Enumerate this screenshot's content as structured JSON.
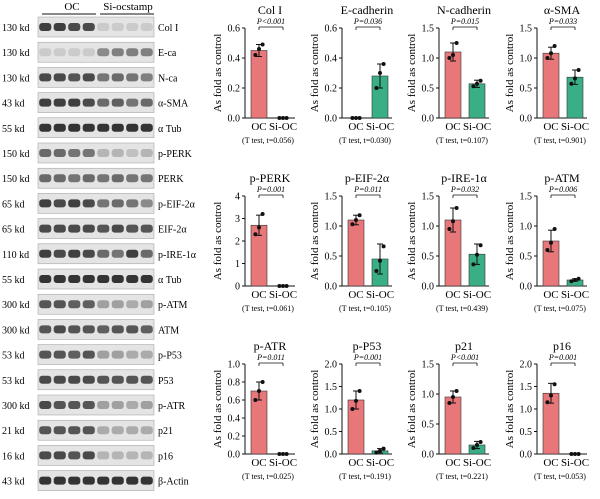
{
  "blot": {
    "groups": [
      "OC",
      "Si-ocstamp"
    ],
    "rows": [
      {
        "kd": "130 kd",
        "label": "Col I",
        "intensity": [
          0.8,
          0.8,
          0.75,
          0.75,
          0.15,
          0.15,
          0.15,
          0.15
        ]
      },
      {
        "kd": "130 kd",
        "label": "E-ca",
        "intensity": [
          0.15,
          0.15,
          0.15,
          0.15,
          0.45,
          0.5,
          0.5,
          0.5
        ]
      },
      {
        "kd": "130 kd",
        "label": "N-ca",
        "intensity": [
          0.75,
          0.75,
          0.7,
          0.75,
          0.55,
          0.6,
          0.55,
          0.5
        ]
      },
      {
        "kd": "43 kd",
        "label": "α-SMA",
        "intensity": [
          0.8,
          0.8,
          0.8,
          0.75,
          0.6,
          0.65,
          0.55,
          0.6
        ]
      },
      {
        "kd": "55 kd",
        "label": "α Tub",
        "intensity": [
          0.85,
          0.85,
          0.85,
          0.85,
          0.85,
          0.85,
          0.85,
          0.85
        ]
      },
      {
        "kd": "150 kd",
        "label": "p-PERK",
        "intensity": [
          0.6,
          0.6,
          0.55,
          0.55,
          0.25,
          0.25,
          0.2,
          0.25
        ]
      },
      {
        "kd": "150 kd",
        "label": "PERK",
        "intensity": [
          0.6,
          0.6,
          0.55,
          0.6,
          0.55,
          0.6,
          0.55,
          0.55
        ]
      },
      {
        "kd": "65 kd",
        "label": "p-EIF-2α",
        "intensity": [
          0.8,
          0.75,
          0.8,
          0.75,
          0.55,
          0.6,
          0.55,
          0.45
        ]
      },
      {
        "kd": "65 kd",
        "label": "EIF-2α",
        "intensity": [
          0.75,
          0.75,
          0.75,
          0.75,
          0.7,
          0.75,
          0.7,
          0.7
        ]
      },
      {
        "kd": "110 kd",
        "label": "p-IRE-1α",
        "intensity": [
          0.8,
          0.75,
          0.8,
          0.75,
          0.6,
          0.55,
          0.8,
          0.6
        ]
      },
      {
        "kd": "55 kd",
        "label": "α Tub",
        "intensity": [
          0.85,
          0.85,
          0.85,
          0.85,
          0.85,
          0.85,
          0.85,
          0.85
        ]
      },
      {
        "kd": "300 kd",
        "label": "p-ATM",
        "intensity": [
          0.7,
          0.7,
          0.65,
          0.65,
          0.35,
          0.35,
          0.3,
          0.35
        ]
      },
      {
        "kd": "300 kd",
        "label": "ATM",
        "intensity": [
          0.7,
          0.75,
          0.7,
          0.7,
          0.65,
          0.7,
          0.7,
          0.65
        ]
      },
      {
        "kd": "53 kd",
        "label": "p-P53",
        "intensity": [
          0.7,
          0.7,
          0.65,
          0.7,
          0.35,
          0.35,
          0.3,
          0.3
        ]
      },
      {
        "kd": "53 kd",
        "label": "P53",
        "intensity": [
          0.75,
          0.75,
          0.75,
          0.75,
          0.7,
          0.7,
          0.7,
          0.7
        ]
      },
      {
        "kd": "300 kd",
        "label": "p-ATR",
        "intensity": [
          0.75,
          0.7,
          0.7,
          0.7,
          0.35,
          0.35,
          0.3,
          0.35
        ]
      },
      {
        "kd": "21 kd",
        "label": "p21",
        "intensity": [
          0.7,
          0.7,
          0.7,
          0.7,
          0.3,
          0.3,
          0.3,
          0.3
        ]
      },
      {
        "kd": "16 kd",
        "label": "p16",
        "intensity": [
          0.75,
          0.75,
          0.7,
          0.75,
          0.25,
          0.25,
          0.25,
          0.25
        ]
      },
      {
        "kd": "43 kd",
        "label": "β-Actin",
        "intensity": [
          0.85,
          0.85,
          0.85,
          0.85,
          0.85,
          0.85,
          0.85,
          0.85
        ]
      }
    ]
  },
  "colors": {
    "oc": "#e8777a",
    "sioc": "#3aaf85",
    "dot": "#111111"
  },
  "ylabel": "As fold as control",
  "chart_data": [
    {
      "type": "bar",
      "title": "Col I",
      "categories": [
        "OC",
        "Si-OC"
      ],
      "values": [
        0.45,
        0.0
      ],
      "errors": [
        0.04,
        0.0
      ],
      "points": [
        [
          0.42,
          0.46,
          0.49
        ],
        [
          0.0,
          0.0,
          0.0
        ]
      ],
      "ylim": [
        0,
        0.6
      ],
      "yticks": [
        "0.0",
        "0.2",
        "0.4",
        "0.6"
      ],
      "pval": "P<0.001",
      "note": "(T test, t=0.056)"
    },
    {
      "type": "bar",
      "title": "E-cadherin",
      "categories": [
        "OC",
        "Si-OC"
      ],
      "values": [
        0.0,
        0.28
      ],
      "errors": [
        0.0,
        0.08
      ],
      "points": [
        [
          0.0,
          0.0,
          0.0
        ],
        [
          0.2,
          0.3,
          0.36
        ]
      ],
      "ylim": [
        0,
        0.6
      ],
      "yticks": [
        "0.0",
        "0.2",
        "0.4",
        "0.6"
      ],
      "pval": "P=0.036",
      "note": "(T test, t=0.030)"
    },
    {
      "type": "bar",
      "title": "N-cadherin",
      "categories": [
        "OC",
        "Si-OC"
      ],
      "values": [
        1.1,
        0.57
      ],
      "errors": [
        0.15,
        0.06
      ],
      "points": [
        [
          1.0,
          1.05,
          1.25
        ],
        [
          0.53,
          0.57,
          0.62
        ]
      ],
      "ylim": [
        0,
        1.5
      ],
      "yticks": [
        "0.0",
        "0.5",
        "1.0",
        "1.5"
      ],
      "pval": "P=0.015",
      "note": "(T test, t=0.107)"
    },
    {
      "type": "bar",
      "title": "α-SMA",
      "categories": [
        "OC",
        "Si-OC"
      ],
      "values": [
        1.08,
        0.68
      ],
      "errors": [
        0.1,
        0.12
      ],
      "points": [
        [
          1.0,
          1.08,
          1.2
        ],
        [
          0.57,
          0.66,
          0.8
        ]
      ],
      "ylim": [
        0,
        1.5
      ],
      "yticks": [
        "0.0",
        "0.5",
        "1.0",
        "1.5"
      ],
      "pval": "P=0.033",
      "note": "(T test, t=0.901)"
    },
    {
      "type": "bar",
      "title": "p-PERK",
      "categories": [
        "OC",
        "Si-OC"
      ],
      "values": [
        2.7,
        0.0
      ],
      "errors": [
        0.45,
        0.0
      ],
      "points": [
        [
          2.3,
          2.6,
          3.2
        ],
        [
          0.0,
          0.0,
          0.0
        ]
      ],
      "ylim": [
        0,
        4
      ],
      "yticks": [
        "0",
        "1",
        "2",
        "3",
        "4"
      ],
      "pval": "P=0.001",
      "note": "(T test, t=0.061)"
    },
    {
      "type": "bar",
      "title": "p-EIF-2α",
      "categories": [
        "OC",
        "Si-OC"
      ],
      "values": [
        1.1,
        0.45
      ],
      "errors": [
        0.08,
        0.25
      ],
      "points": [
        [
          1.03,
          1.1,
          1.18
        ],
        [
          0.25,
          0.42,
          0.66
        ]
      ],
      "ylim": [
        0,
        1.5
      ],
      "yticks": [
        "0.0",
        "0.5",
        "1.0",
        "1.5"
      ],
      "pval": "P=0.011",
      "note": "(T test, t=0.105)"
    },
    {
      "type": "bar",
      "title": "p-IRE-1α",
      "categories": [
        "OC",
        "Si-OC"
      ],
      "values": [
        1.1,
        0.53
      ],
      "errors": [
        0.2,
        0.17
      ],
      "points": [
        [
          0.95,
          1.08,
          1.3
        ],
        [
          0.36,
          0.52,
          0.68
        ]
      ],
      "ylim": [
        0,
        1.5
      ],
      "yticks": [
        "0.0",
        "0.5",
        "1.0",
        "1.5"
      ],
      "pval": "P=0.032",
      "note": "(T test, t=0.439)"
    },
    {
      "type": "bar",
      "title": "p-ATM",
      "categories": [
        "OC",
        "Si-OC"
      ],
      "values": [
        0.75,
        0.1
      ],
      "errors": [
        0.18,
        0.02
      ],
      "points": [
        [
          0.6,
          0.72,
          0.95
        ],
        [
          0.08,
          0.1,
          0.12
        ]
      ],
      "ylim": [
        0,
        1.5
      ],
      "yticks": [
        "0.0",
        "0.5",
        "1.0",
        "1.5"
      ],
      "pval": "P=0.006",
      "note": "(T test, t=0.075)"
    },
    {
      "type": "bar",
      "title": "p-ATR",
      "categories": [
        "OC",
        "Si-OC"
      ],
      "values": [
        0.7,
        0.0
      ],
      "errors": [
        0.1,
        0.0
      ],
      "points": [
        [
          0.6,
          0.7,
          0.8
        ],
        [
          0.0,
          0.0,
          0.0
        ]
      ],
      "ylim": [
        0,
        1.0
      ],
      "yticks": [
        "0.0",
        "0.2",
        "0.4",
        "0.6",
        "0.8",
        "1.0"
      ],
      "pval": "P=0.011",
      "note": "(T test, t=0.025)"
    },
    {
      "type": "bar",
      "title": "p-P53",
      "categories": [
        "OC",
        "Si-OC"
      ],
      "values": [
        1.2,
        0.07
      ],
      "errors": [
        0.2,
        0.05
      ],
      "points": [
        [
          1.0,
          1.18,
          1.4
        ],
        [
          0.03,
          0.07,
          0.12
        ]
      ],
      "ylim": [
        0,
        2.0
      ],
      "yticks": [
        "0.0",
        "0.5",
        "1.0",
        "1.5",
        "2.0"
      ],
      "pval": "P=0.001",
      "note": "(T test, t=0.191)"
    },
    {
      "type": "bar",
      "title": "p21",
      "categories": [
        "OC",
        "Si-OC"
      ],
      "values": [
        0.95,
        0.15
      ],
      "errors": [
        0.1,
        0.06
      ],
      "points": [
        [
          0.85,
          0.95,
          1.05
        ],
        [
          0.1,
          0.15,
          0.2
        ]
      ],
      "ylim": [
        0,
        1.5
      ],
      "yticks": [
        "0.0",
        "0.5",
        "1.0",
        "1.5"
      ],
      "pval": "P<0.001",
      "note": "(T test, t=0.221)"
    },
    {
      "type": "bar",
      "title": "p16",
      "categories": [
        "OC",
        "Si-OC"
      ],
      "values": [
        1.35,
        0.0
      ],
      "errors": [
        0.22,
        0.0
      ],
      "points": [
        [
          1.15,
          1.3,
          1.55
        ],
        [
          0.0,
          0.0,
          0.0
        ]
      ],
      "ylim": [
        0,
        2.0
      ],
      "yticks": [
        "0.0",
        "0.5",
        "1.0",
        "1.5",
        "2.0"
      ],
      "pval": "P=0.001",
      "note": "(T test, t=0.053)"
    }
  ]
}
